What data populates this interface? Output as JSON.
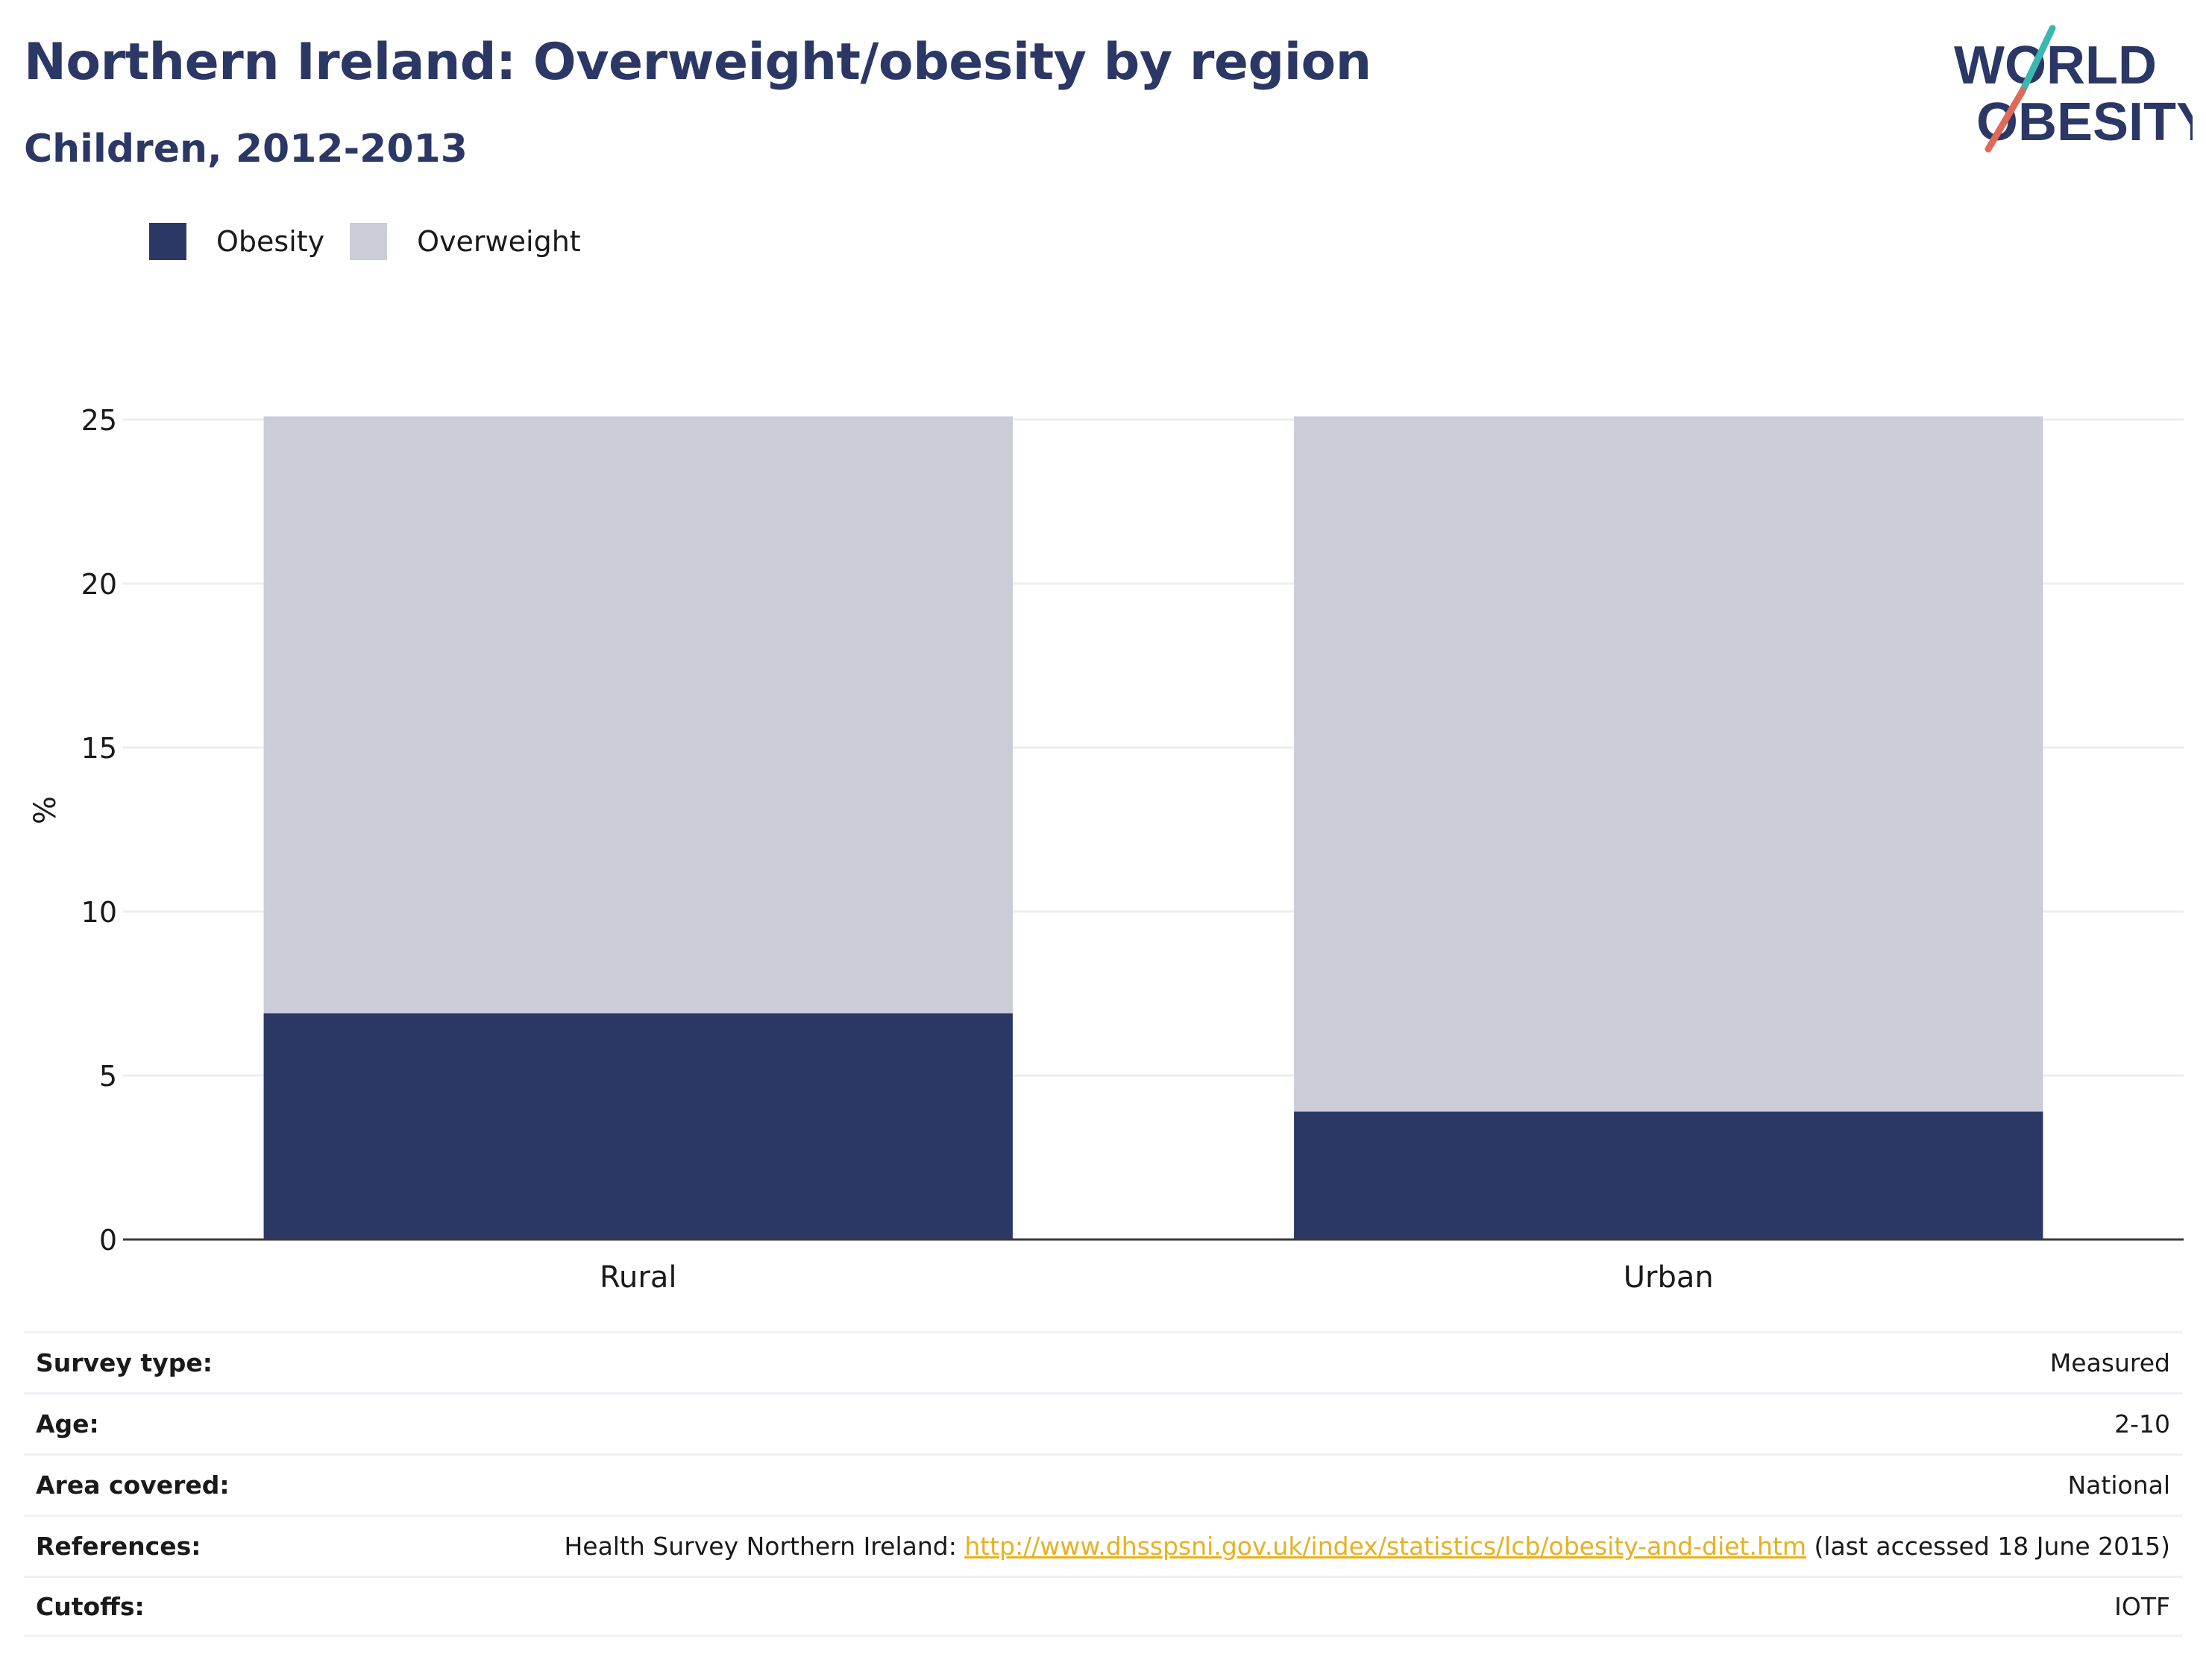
{
  "title": "Northern Ireland: Overweight/obesity by region",
  "subtitle": "Children, 2012-2013",
  "logo": {
    "line1": "WORLD",
    "line2": "OBESITY"
  },
  "colors": {
    "obesity": "#2b3764",
    "overweight": "#cacdd8",
    "title": "#2b3764",
    "link": "#e6b122",
    "grid": "#ebedf0",
    "axis": "#3a3a3a"
  },
  "legend": [
    {
      "label": "Obesity",
      "color": "#2b3764"
    },
    {
      "label": "Overweight",
      "color": "#cacdd8"
    }
  ],
  "chart_data": {
    "type": "bar",
    "stacked": true,
    "categories": [
      "Rural",
      "Urban"
    ],
    "series": [
      {
        "name": "Obesity",
        "values": [
          6.9,
          3.9
        ]
      },
      {
        "name": "Overweight",
        "values": [
          18.2,
          21.2
        ]
      }
    ],
    "ylabel": "%",
    "ylim": [
      0,
      25
    ],
    "yticks": [
      0,
      5,
      10,
      15,
      20,
      25
    ],
    "grid": true,
    "legend_position": "top-left"
  },
  "info": {
    "survey_type": {
      "label": "Survey type:",
      "value": "Measured"
    },
    "age": {
      "label": "Age:",
      "value": "2-10"
    },
    "area": {
      "label": "Area covered:",
      "value": "National"
    },
    "references": {
      "label": "References:",
      "prefix": "Health Survey Northern Ireland: ",
      "link": "http://www.dhsspsni.gov.uk/index/statistics/lcb/obesity-and-diet.htm",
      "suffix": " (last accessed 18 June 2015)"
    },
    "cutoffs": {
      "label": "Cutoffs:",
      "value": "IOTF"
    }
  }
}
